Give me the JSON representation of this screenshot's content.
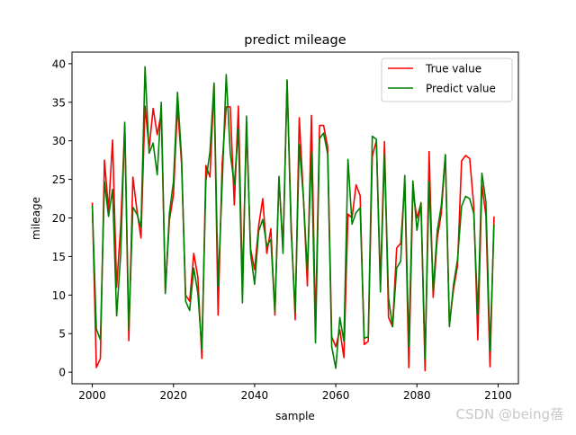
{
  "chart_data": {
    "type": "line",
    "title": "predict mileage",
    "xlabel": "sample",
    "ylabel": "mileage",
    "xlim": [
      1995,
      2105
    ],
    "ylim": [
      -1.5,
      41.5
    ],
    "xticks": [
      2000,
      2020,
      2040,
      2060,
      2080,
      2100
    ],
    "yticks": [
      0,
      5,
      10,
      15,
      20,
      25,
      30,
      35,
      40
    ],
    "grid": false,
    "legend": "top-right",
    "x": [
      2000,
      2001,
      2002,
      2003,
      2004,
      2005,
      2006,
      2007,
      2008,
      2009,
      2010,
      2011,
      2012,
      2013,
      2014,
      2015,
      2016,
      2017,
      2018,
      2019,
      2020,
      2021,
      2022,
      2023,
      2024,
      2025,
      2026,
      2027,
      2028,
      2029,
      2030,
      2031,
      2032,
      2033,
      2034,
      2035,
      2036,
      2037,
      2038,
      2039,
      2040,
      2041,
      2042,
      2043,
      2044,
      2045,
      2046,
      2047,
      2048,
      2049,
      2050,
      2051,
      2052,
      2053,
      2054,
      2055,
      2056,
      2057,
      2058,
      2059,
      2060,
      2061,
      2062,
      2063,
      2064,
      2065,
      2066,
      2067,
      2068,
      2069,
      2070,
      2071,
      2072,
      2073,
      2074,
      2075,
      2076,
      2077,
      2078,
      2079,
      2080,
      2081,
      2082,
      2083,
      2084,
      2085,
      2086,
      2087,
      2088,
      2089,
      2090,
      2091,
      2092,
      2093,
      2094,
      2095,
      2096,
      2097,
      2098,
      2099
    ],
    "series": [
      {
        "name": "True value",
        "color": "#ff0000",
        "values": [
          22,
          0.6,
          1.8,
          27.5,
          21,
          30.1,
          11,
          19,
          32,
          4.1,
          25.3,
          21,
          17.4,
          34.5,
          29,
          34.2,
          30.8,
          33.6,
          10.5,
          19.7,
          23,
          34.6,
          27,
          10,
          9.2,
          15.4,
          12.4,
          1.8,
          26.8,
          25.3,
          37.3,
          7.4,
          27,
          34.4,
          34.4,
          21.7,
          34.5,
          11.3,
          32,
          16,
          13.3,
          19,
          22.5,
          15.4,
          18.6,
          7.4,
          25,
          16,
          37.8,
          19.3,
          6.8,
          33,
          23,
          11.2,
          33.3,
          5.7,
          32,
          32,
          29.2,
          4.6,
          3.3,
          5.5,
          1.9,
          20.5,
          20,
          24.3,
          22.9,
          3.6,
          4,
          28,
          30,
          11.5,
          29.9,
          7.1,
          5.9,
          16.1,
          16.7,
          24.6,
          0.6,
          23.5,
          20,
          21.9,
          0.2,
          28.6,
          9.7,
          17.3,
          20.6,
          28.2,
          6.2,
          10.7,
          13.8,
          27.4,
          28.1,
          27.7,
          21.6,
          4.2,
          24.3,
          20.3,
          0.7,
          20.2
        ]
      },
      {
        "name": "Predict value",
        "color": "#008000",
        "values": [
          21.6,
          5.6,
          4.2,
          24.7,
          20.2,
          23.7,
          7.3,
          15.3,
          32.4,
          5.5,
          21.4,
          20.5,
          18.8,
          39.6,
          28.4,
          29.7,
          25.6,
          35,
          10.2,
          20.6,
          24.7,
          36.3,
          27.8,
          9.2,
          8,
          13.5,
          10.3,
          3,
          24.8,
          28.6,
          37.5,
          11.2,
          24.3,
          38.6,
          28.4,
          24.3,
          31.5,
          9,
          33.2,
          15.4,
          11.4,
          18.3,
          19.8,
          16.4,
          17.2,
          7.8,
          25.4,
          15.4,
          37.9,
          18.3,
          7.8,
          29.5,
          22.8,
          13.1,
          28.5,
          3.8,
          30.3,
          31,
          28.3,
          3.3,
          0.5,
          7.1,
          4,
          27.6,
          19.2,
          20.7,
          21.3,
          4.4,
          4.6,
          30.6,
          30.2,
          10.4,
          28.4,
          9.6,
          5.9,
          13.5,
          14.4,
          25.5,
          3.4,
          24.8,
          18.4,
          22,
          1.8,
          24.7,
          10.6,
          18.3,
          21.6,
          28.2,
          5.9,
          11.3,
          14.6,
          21.5,
          22.8,
          22.5,
          20.6,
          7.5,
          25.8,
          22.1,
          2.8,
          19.2
        ]
      }
    ],
    "watermark": "CSDN @being蓓"
  }
}
